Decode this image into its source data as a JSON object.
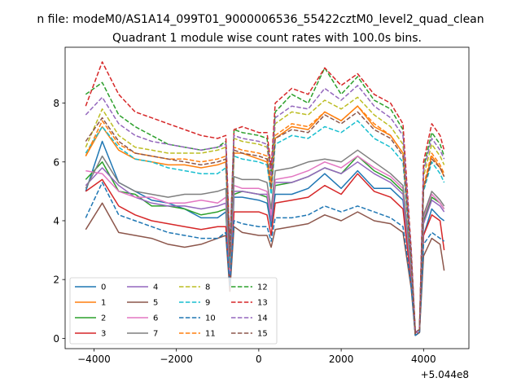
{
  "figure": {
    "suptitle": "n file: modeM0/AS1A14_099T01_9000006536_55422cztM0_level2_quad_clean",
    "title": "Quadrant 1 module wise count rates with 100.0s bins.",
    "x_offset_label": "+5.044e8"
  },
  "chart_data": {
    "type": "line",
    "title": "Quadrant 1 module wise count rates with 100.0s bins.",
    "xlabel": "",
    "ylabel": "",
    "x_offset": 504400000,
    "xlim": [
      -4700,
      5100
    ],
    "ylim": [
      -0.35,
      9.9
    ],
    "xticks": [
      -4000,
      -2000,
      0,
      2000,
      4000
    ],
    "xtick_labels": [
      "−4000",
      "−2000",
      "0",
      "2000",
      "4000"
    ],
    "yticks": [
      0,
      2,
      4,
      6,
      8
    ],
    "ytick_labels": [
      "0",
      "2",
      "4",
      "6",
      "8"
    ],
    "grid": false,
    "legend": {
      "placement": "lower-left",
      "columns": 4
    },
    "x": [
      -4200,
      -3800,
      -3400,
      -3000,
      -2600,
      -2200,
      -1800,
      -1400,
      -1000,
      -800,
      -700,
      -600,
      -400,
      0,
      200,
      300,
      400,
      800,
      1200,
      1600,
      2000,
      2400,
      2800,
      3200,
      3500,
      3700,
      3800,
      3900,
      4000,
      4200,
      4400,
      4500
    ],
    "series": [
      {
        "name": "0",
        "color": "#1f77b4",
        "style": "solid",
        "values": [
          5.0,
          6.7,
          5.3,
          5.0,
          4.7,
          4.6,
          4.4,
          4.1,
          4.1,
          4.3,
          2.0,
          4.8,
          4.8,
          4.7,
          4.6,
          3.8,
          4.9,
          4.9,
          5.1,
          5.6,
          5.1,
          5.7,
          5.1,
          5.1,
          4.7,
          2.0,
          0.1,
          0.2,
          3.5,
          4.4,
          4.1,
          4.0
        ]
      },
      {
        "name": "1",
        "color": "#ff7f0e",
        "style": "solid",
        "values": [
          6.2,
          7.2,
          6.4,
          6.1,
          6.0,
          5.9,
          5.9,
          5.8,
          5.9,
          6.0,
          2.7,
          6.3,
          6.3,
          6.1,
          6.0,
          5.0,
          6.8,
          7.2,
          7.1,
          7.7,
          7.4,
          7.9,
          7.2,
          6.9,
          6.3,
          2.6,
          0.2,
          0.3,
          5.1,
          6.2,
          5.8,
          5.5
        ]
      },
      {
        "name": "2",
        "color": "#2ca02c",
        "style": "solid",
        "values": [
          5.4,
          6.0,
          5.0,
          4.9,
          4.5,
          4.5,
          4.4,
          4.2,
          4.3,
          4.4,
          2.1,
          4.9,
          5.0,
          4.9,
          4.8,
          4.0,
          5.2,
          5.3,
          5.5,
          5.8,
          5.6,
          6.2,
          5.7,
          5.4,
          5.0,
          2.1,
          0.1,
          0.2,
          4.0,
          4.8,
          4.6,
          4.4
        ]
      },
      {
        "name": "3",
        "color": "#d62728",
        "style": "solid",
        "values": [
          5.0,
          5.4,
          4.5,
          4.2,
          4.0,
          3.9,
          3.8,
          3.7,
          3.8,
          3.8,
          1.9,
          4.3,
          4.3,
          4.3,
          4.2,
          3.5,
          4.6,
          4.7,
          4.8,
          5.2,
          4.9,
          5.6,
          5.0,
          4.8,
          4.4,
          1.9,
          0.1,
          0.2,
          3.5,
          4.2,
          4.0,
          3.0
        ]
      },
      {
        "name": "4",
        "color": "#9467bd",
        "style": "solid",
        "values": [
          5.2,
          5.8,
          5.2,
          4.8,
          4.6,
          4.5,
          4.5,
          4.4,
          4.5,
          4.6,
          2.2,
          5.0,
          5.0,
          4.9,
          4.9,
          4.0,
          5.3,
          5.3,
          5.5,
          5.8,
          5.6,
          6.0,
          5.6,
          5.3,
          4.9,
          2.2,
          0.2,
          0.2,
          3.9,
          4.7,
          4.5,
          4.3
        ]
      },
      {
        "name": "5",
        "color": "#8c564b",
        "style": "solid",
        "values": [
          3.7,
          4.6,
          3.6,
          3.5,
          3.4,
          3.2,
          3.1,
          3.2,
          3.4,
          3.5,
          1.6,
          3.8,
          3.6,
          3.5,
          3.5,
          3.1,
          3.7,
          3.8,
          3.9,
          4.2,
          4.0,
          4.3,
          4.0,
          3.9,
          3.6,
          1.7,
          0.1,
          0.2,
          2.8,
          3.4,
          3.2,
          2.3
        ]
      },
      {
        "name": "6",
        "color": "#e377c2",
        "style": "solid",
        "values": [
          5.7,
          5.6,
          5.0,
          4.8,
          4.8,
          4.6,
          4.6,
          4.7,
          4.6,
          4.8,
          2.3,
          5.2,
          5.1,
          5.1,
          5.0,
          4.2,
          5.4,
          5.5,
          5.7,
          6.0,
          5.8,
          6.2,
          5.8,
          5.5,
          5.1,
          2.3,
          0.2,
          0.3,
          4.1,
          4.9,
          4.6,
          4.4
        ]
      },
      {
        "name": "7",
        "color": "#7f7f7f",
        "style": "solid",
        "values": [
          5.1,
          6.2,
          5.3,
          5.0,
          4.9,
          4.8,
          4.9,
          4.9,
          5.0,
          5.1,
          2.4,
          5.5,
          5.4,
          5.4,
          5.3,
          4.4,
          5.7,
          5.8,
          6.0,
          6.1,
          6.0,
          6.4,
          6.0,
          5.6,
          5.2,
          2.4,
          0.2,
          0.3,
          4.2,
          5.0,
          4.7,
          4.5
        ]
      },
      {
        "name": "8",
        "color": "#bcbd22",
        "style": "dashed",
        "values": [
          6.5,
          7.8,
          6.9,
          6.5,
          6.4,
          6.3,
          6.3,
          6.3,
          6.4,
          6.5,
          3.0,
          6.8,
          6.7,
          6.6,
          6.5,
          5.4,
          7.3,
          7.7,
          7.6,
          8.1,
          7.8,
          8.2,
          7.6,
          7.2,
          6.6,
          2.8,
          0.2,
          0.3,
          5.5,
          6.6,
          6.2,
          5.9
        ]
      },
      {
        "name": "9",
        "color": "#17becf",
        "style": "dashed",
        "values": [
          6.3,
          7.2,
          6.5,
          6.1,
          6.0,
          5.8,
          5.7,
          5.6,
          5.6,
          5.8,
          2.7,
          6.2,
          6.1,
          6.0,
          5.9,
          4.9,
          6.6,
          6.9,
          6.8,
          7.2,
          7.0,
          7.4,
          6.8,
          6.5,
          6.0,
          2.6,
          0.2,
          0.3,
          5.0,
          6.0,
          5.6,
          5.3
        ]
      },
      {
        "name": "10",
        "color": "#1f77b4",
        "style": "dashed",
        "values": [
          4.1,
          5.3,
          4.2,
          4.0,
          3.8,
          3.6,
          3.5,
          3.4,
          3.4,
          3.6,
          1.8,
          4.0,
          3.9,
          3.8,
          3.8,
          3.3,
          4.1,
          4.1,
          4.2,
          4.5,
          4.3,
          4.5,
          4.3,
          4.1,
          3.8,
          1.8,
          0.1,
          0.2,
          3.2,
          3.6,
          3.4,
          3.3
        ]
      },
      {
        "name": "11",
        "color": "#ff7f0e",
        "style": "dashed",
        "values": [
          6.2,
          7.4,
          6.6,
          6.3,
          6.2,
          6.1,
          6.1,
          6.0,
          6.1,
          6.2,
          2.9,
          6.5,
          6.4,
          6.3,
          6.2,
          5.2,
          6.9,
          7.3,
          7.2,
          7.7,
          7.4,
          7.9,
          7.3,
          6.9,
          6.3,
          2.7,
          0.2,
          0.3,
          5.2,
          6.3,
          5.9,
          5.6
        ]
      },
      {
        "name": "12",
        "color": "#2ca02c",
        "style": "dashed",
        "values": [
          8.3,
          8.7,
          7.6,
          7.2,
          6.9,
          6.6,
          6.5,
          6.4,
          6.5,
          6.7,
          3.0,
          7.1,
          7.0,
          6.9,
          6.8,
          5.6,
          7.7,
          8.3,
          8.0,
          9.2,
          8.3,
          8.9,
          8.1,
          7.8,
          7.1,
          3.0,
          0.2,
          0.3,
          5.8,
          7.0,
          6.6,
          6.2
        ]
      },
      {
        "name": "13",
        "color": "#d62728",
        "style": "dashed",
        "values": [
          7.9,
          9.4,
          8.3,
          7.7,
          7.5,
          7.3,
          7.1,
          6.9,
          6.8,
          6.9,
          3.1,
          7.1,
          7.2,
          7.0,
          7.0,
          5.8,
          8.0,
          8.5,
          8.3,
          9.2,
          8.6,
          9.0,
          8.3,
          8.0,
          7.3,
          3.0,
          0.2,
          0.3,
          6.0,
          7.3,
          6.9,
          6.4
        ]
      },
      {
        "name": "14",
        "color": "#9467bd",
        "style": "dashed",
        "values": [
          7.6,
          8.2,
          7.3,
          6.9,
          6.7,
          6.6,
          6.5,
          6.4,
          6.5,
          6.6,
          3.0,
          6.9,
          6.8,
          6.7,
          6.6,
          5.5,
          7.5,
          7.9,
          7.8,
          8.5,
          8.1,
          8.6,
          7.9,
          7.5,
          6.9,
          2.9,
          0.2,
          0.3,
          5.7,
          6.8,
          6.4,
          6.1
        ]
      },
      {
        "name": "15",
        "color": "#8c564b",
        "style": "dashed",
        "values": [
          6.7,
          7.5,
          6.7,
          6.3,
          6.2,
          6.1,
          6.0,
          5.9,
          6.0,
          6.1,
          2.8,
          6.4,
          6.3,
          6.2,
          6.1,
          5.1,
          6.8,
          7.1,
          7.0,
          7.6,
          7.3,
          7.7,
          7.1,
          6.8,
          6.2,
          2.7,
          0.2,
          0.3,
          5.1,
          6.1,
          5.8,
          5.5
        ]
      }
    ]
  }
}
